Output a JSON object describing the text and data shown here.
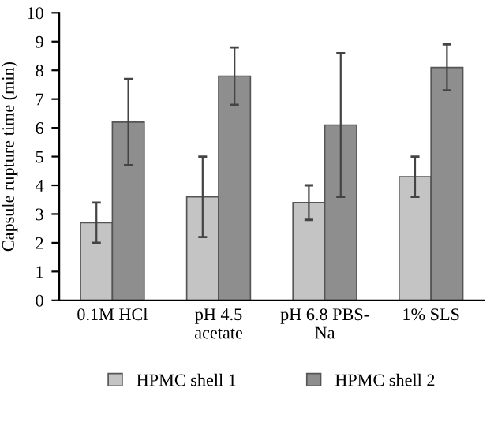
{
  "chart_data": {
    "type": "bar",
    "ylabel": "Capsule rupture time (min)",
    "categories": [
      "0.1M HCl",
      "pH 4.5\nacetate",
      "pH 6.8 PBS-\nNa",
      "1% SLS"
    ],
    "series": [
      {
        "name": "HPMC shell 1",
        "color": "#c4c4c4",
        "values": [
          2.7,
          3.6,
          3.4,
          4.3
        ],
        "errors": [
          [
            2.0,
            3.4
          ],
          [
            2.2,
            5.0
          ],
          [
            2.8,
            4.0
          ],
          [
            3.6,
            5.0
          ]
        ]
      },
      {
        "name": "HPMC shell 2",
        "color": "#8e8e8e",
        "values": [
          6.2,
          7.8,
          6.1,
          8.1
        ],
        "errors": [
          [
            4.7,
            7.7
          ],
          [
            6.8,
            8.8
          ],
          [
            3.6,
            8.6
          ],
          [
            7.3,
            8.9
          ]
        ]
      }
    ],
    "ylim": [
      0,
      10
    ],
    "yticks": [
      0,
      1,
      2,
      3,
      4,
      5,
      6,
      7,
      8,
      9,
      10
    ],
    "grid": false,
    "legend": "bottom"
  }
}
